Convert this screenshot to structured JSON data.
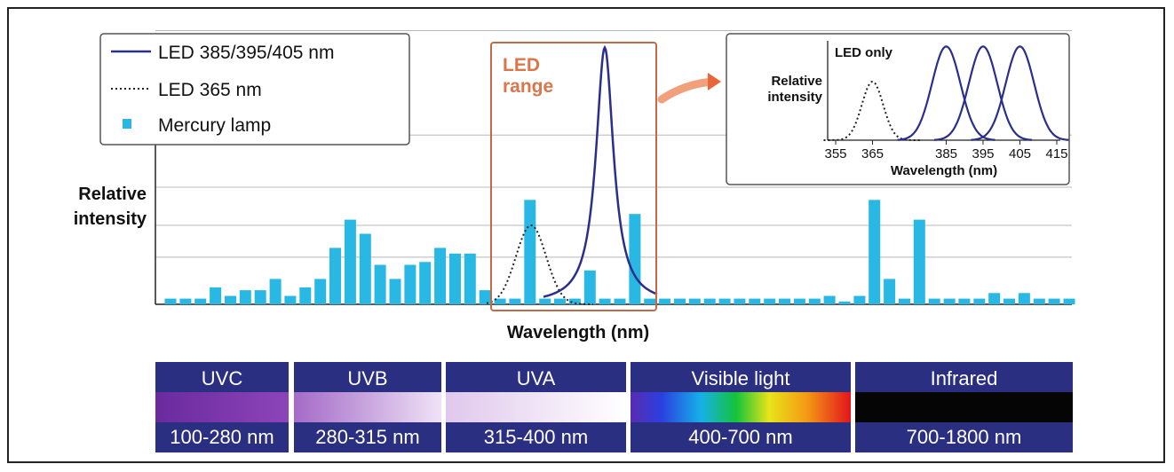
{
  "chart_data": {
    "type": "bar",
    "ylabel": "Relative\nintensity",
    "xlabel": "Wavelength (nm)",
    "led_range_label": "LED\nrange",
    "legend": [
      {
        "label": "LED 385/395/405 nm",
        "style": "solid-line",
        "color": "#2a2e8c"
      },
      {
        "label": "LED 365 nm",
        "style": "dotted-line",
        "color": "#222222"
      },
      {
        "label": "Mercury lamp",
        "style": "bar",
        "color": "#29b8e3"
      }
    ],
    "series": [
      {
        "name": "Mercury lamp",
        "values": [
          0.02,
          0.02,
          0.02,
          0.06,
          0.03,
          0.05,
          0.05,
          0.09,
          0.03,
          0.06,
          0.09,
          0.2,
          0.3,
          0.25,
          0.14,
          0.09,
          0.14,
          0.15,
          0.2,
          0.18,
          0.18,
          0.05,
          0.02,
          0.02,
          0.37,
          0.02,
          0.02,
          0.02,
          0.12,
          0.02,
          0.02,
          0.32,
          0.02,
          0.02,
          0.02,
          0.02,
          0.02,
          0.02,
          0.02,
          0.02,
          0.02,
          0.02,
          0.02,
          0.02,
          0.03,
          0.01,
          0.03,
          0.37,
          0.09,
          0.02,
          0.3,
          0.02,
          0.02,
          0.02,
          0.02,
          0.04,
          0.02,
          0.04,
          0.02,
          0.02,
          0.02
        ]
      },
      {
        "name": "LED 385/395/405 nm",
        "peak": 0.91
      },
      {
        "name": "LED 365 nm",
        "peak": 0.28
      }
    ],
    "inset": {
      "title": "LED only",
      "ylabel": "Relative\nintensity",
      "xlabel": "Wavelength (nm)",
      "xticks": [
        "355",
        "365",
        "385",
        "395",
        "405",
        "415"
      ],
      "peaks_nm": [
        365,
        385,
        395,
        405
      ],
      "xlim": [
        355,
        415
      ]
    },
    "spectrum_bands": [
      {
        "name": "UVC",
        "range": "100-280 nm"
      },
      {
        "name": "UVB",
        "range": "280-315 nm"
      },
      {
        "name": "UVA",
        "range": "315-400 nm"
      },
      {
        "name": "Visible light",
        "range": "400-700 nm"
      },
      {
        "name": "Infrared",
        "range": "700-1800 nm"
      }
    ],
    "colors": {
      "accent": "#d9764a",
      "led_curve": "#2a2e8c",
      "bar": "#29b8e3",
      "band_header": "#2b2f82"
    }
  }
}
